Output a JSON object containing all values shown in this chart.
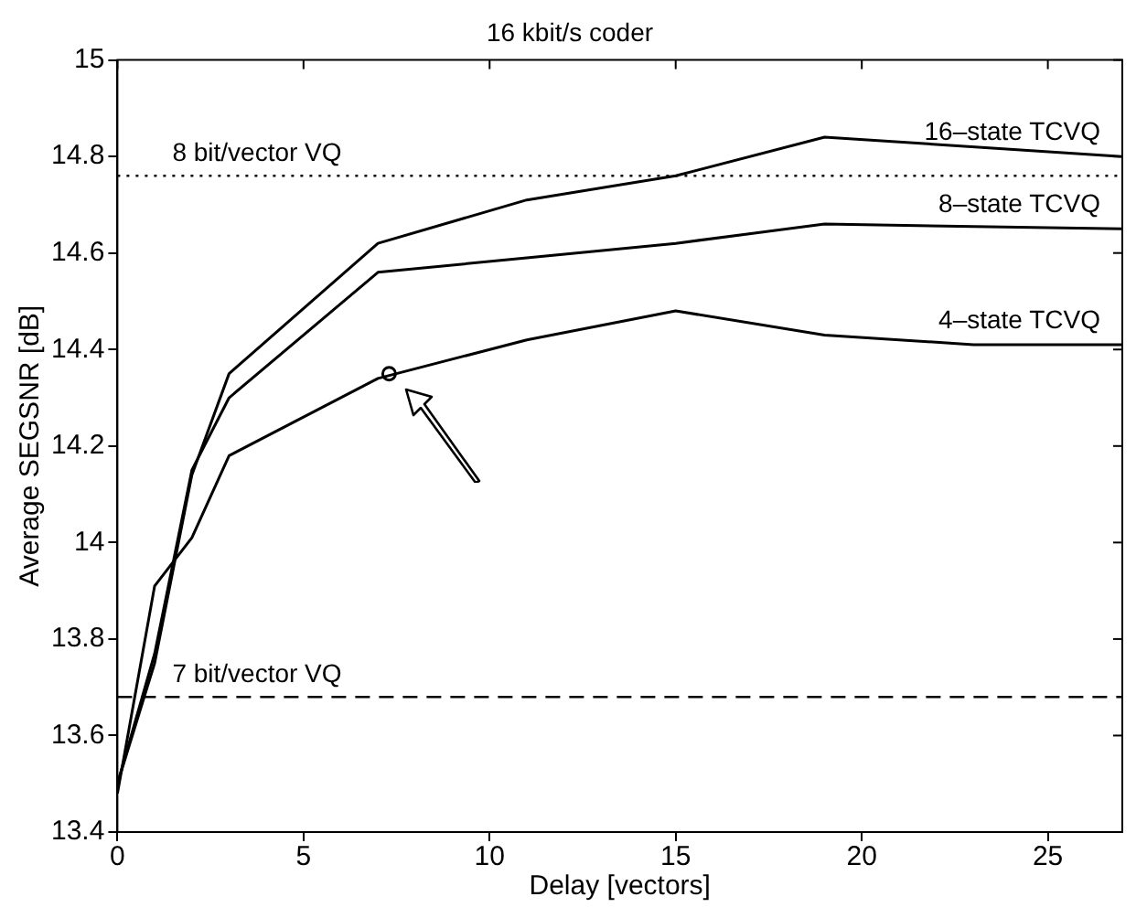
{
  "chart_data": {
    "type": "line",
    "title": "16 kbit/s coder",
    "xlabel": "Delay [vectors]",
    "ylabel": "Average SEGSNR [dB]",
    "xlim": [
      0,
      27
    ],
    "xticks": [
      0,
      5,
      10,
      15,
      20,
      25
    ],
    "ylim": [
      13.4,
      15
    ],
    "yticks": [
      13.4,
      13.6,
      13.8,
      14,
      14.2,
      14.4,
      14.6,
      14.8,
      15
    ],
    "grid": false,
    "legend": false,
    "marker": "none",
    "line_style": "solid",
    "series": [
      {
        "name": "16–state TCVQ",
        "color": "#000000",
        "x": [
          0,
          1,
          2,
          3,
          7,
          11,
          15,
          19,
          27
        ],
        "values": [
          13.5,
          13.75,
          14.14,
          14.35,
          14.62,
          14.71,
          14.76,
          14.84,
          14.8
        ]
      },
      {
        "name": "8–state TCVQ",
        "color": "#000000",
        "x": [
          0,
          1,
          2,
          3,
          7,
          11,
          15,
          19,
          27
        ],
        "values": [
          13.5,
          13.77,
          14.15,
          14.3,
          14.56,
          14.59,
          14.62,
          14.66,
          14.65
        ]
      },
      {
        "name": "4–state TCVQ",
        "color": "#000000",
        "x": [
          0,
          1,
          2,
          3,
          7,
          11,
          15,
          19,
          23,
          27
        ],
        "values": [
          13.48,
          13.91,
          14.01,
          14.18,
          14.34,
          14.42,
          14.48,
          14.43,
          14.41,
          14.41
        ]
      },
      {
        "type": "scatter",
        "color": "#000000",
        "marker": "circle",
        "x": [
          7.3
        ],
        "values": [
          14.35
        ]
      }
    ],
    "ref_lines": [
      {
        "axis": "y",
        "value": 14.76,
        "label": "8 bit/vector VQ",
        "color": "#000000",
        "line_style": "dotted"
      },
      {
        "axis": "y",
        "value": 13.68,
        "label": "7 bit/vector VQ",
        "color": "#000000",
        "line_style": "dashed"
      }
    ]
  }
}
